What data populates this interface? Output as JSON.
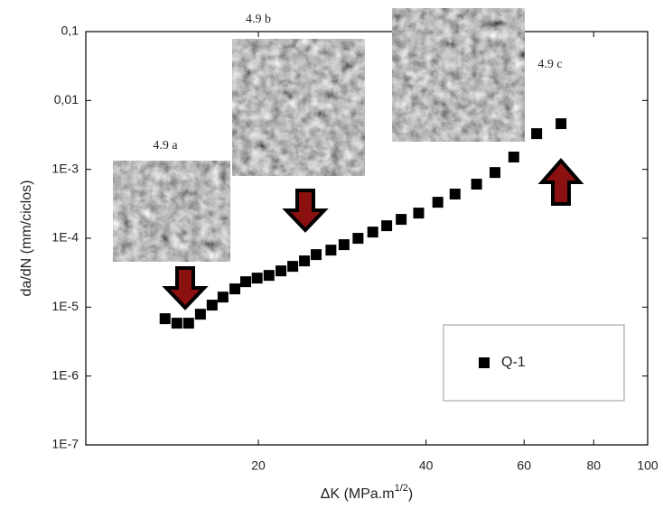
{
  "chart_data": {
    "type": "scatter",
    "x_label_parts": [
      "ΔK (MPa.m",
      "1/2",
      ")"
    ],
    "y_label": "da/dN (mm/ciclos)",
    "log_x": true,
    "log_y": true,
    "xlim": [
      9.8,
      100
    ],
    "ylim": [
      1e-07,
      0.1
    ],
    "xticks": [
      20,
      40,
      60,
      80,
      100
    ],
    "yticks": [
      {
        "value": 1e-07,
        "label": "1E-7"
      },
      {
        "value": 1e-06,
        "label": "1E-6"
      },
      {
        "value": 1e-05,
        "label": "1E-5"
      },
      {
        "value": 0.0001,
        "label": "1E-4"
      },
      {
        "value": 0.001,
        "label": "1E-3"
      },
      {
        "value": 0.01,
        "label": "0,01"
      },
      {
        "value": 0.1,
        "label": "0,1"
      }
    ],
    "legend": "lower right",
    "annotations": [
      "4.9 a",
      "4.9 b",
      "4.9 c"
    ],
    "x": [
      13.6,
      14.28,
      14.99,
      15.74,
      16.52,
      17.28,
      18.15,
      18.98,
      19.9,
      20.9,
      21.96,
      23.06,
      24.2,
      25.4,
      27.0,
      28.5,
      30.2,
      32.1,
      34.0,
      36.1,
      38.8,
      42.0,
      45.1,
      49.3,
      53.2,
      57.5,
      63.2,
      69.9
    ],
    "series": [
      {
        "name": "Q-1",
        "color": "#000000",
        "values": [
          6.8e-06,
          5.85e-06,
          5.85e-06,
          7.9e-06,
          1.07e-05,
          1.4e-05,
          1.84e-05,
          2.34e-05,
          2.64e-05,
          2.89e-05,
          3.36e-05,
          3.91e-05,
          4.69e-05,
          5.79e-05,
          6.73e-05,
          8.07e-05,
          9.98e-05,
          0.000123,
          0.000152,
          0.000188,
          0.000232,
          0.000333,
          0.000438,
          0.00061,
          0.0009,
          0.00151,
          0.0033,
          0.0046
        ]
      }
    ]
  }
}
